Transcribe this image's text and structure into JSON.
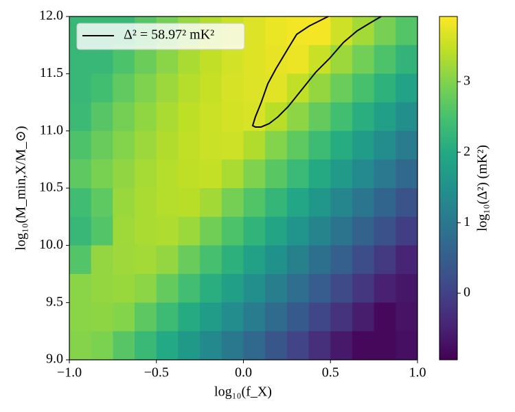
{
  "chart_data": {
    "type": "heatmap",
    "xlabel": "log₁₀(f_X)",
    "ylabel": "log₁₀(M_min,X/M_⊙)",
    "colorbar_label": "log₁₀(Δ²) (mK²)",
    "colormap": "viridis",
    "x": [
      -0.9375,
      -0.8125,
      -0.6875,
      -0.5625,
      -0.4375,
      -0.3125,
      -0.1875,
      -0.0625,
      0.0625,
      0.1875,
      0.3125,
      0.4375,
      0.5625,
      0.6875,
      0.8125,
      0.9375
    ],
    "y": [
      11.875,
      11.625,
      11.375,
      11.125,
      10.875,
      10.625,
      10.375,
      10.125,
      9.875,
      9.625,
      9.375,
      9.125
    ],
    "z": [
      [
        2.3,
        2.3,
        2.3,
        2.63,
        2.91,
        3.16,
        3.37,
        3.54,
        3.68,
        3.78,
        3.84,
        3.86,
        3.57,
        3.25,
        2.92,
        2.6
      ],
      [
        2.3,
        2.3,
        2.54,
        2.82,
        3.07,
        3.29,
        3.46,
        3.6,
        3.7,
        3.76,
        3.79,
        3.52,
        3.2,
        2.87,
        2.55,
        2.22
      ],
      [
        2.3,
        2.44,
        2.73,
        2.98,
        3.2,
        3.37,
        3.51,
        3.62,
        3.68,
        3.71,
        3.46,
        3.14,
        2.81,
        2.49,
        2.16,
        1.84
      ],
      [
        2.35,
        2.64,
        2.9,
        3.11,
        3.29,
        3.44,
        3.54,
        3.61,
        3.64,
        3.41,
        3.09,
        2.76,
        2.44,
        2.11,
        1.79,
        1.46
      ],
      [
        2.55,
        2.8,
        3.02,
        3.2,
        3.35,
        3.46,
        3.53,
        3.56,
        3.35,
        3.02,
        2.7,
        2.37,
        2.05,
        1.72,
        1.4,
        1.07
      ],
      [
        2.72,
        2.94,
        3.12,
        3.27,
        3.38,
        3.45,
        3.49,
        3.3,
        2.98,
        2.65,
        2.33,
        2.0,
        1.68,
        1.35,
        1.03,
        0.7
      ],
      [
        2.4,
        2.7,
        3.18,
        3.3,
        3.37,
        3.41,
        3.24,
        2.91,
        2.59,
        2.26,
        1.94,
        1.61,
        1.29,
        0.96,
        0.64,
        0.31
      ],
      [
        2.3,
        2.6,
        3.22,
        3.3,
        3.33,
        3.19,
        2.86,
        2.54,
        2.21,
        1.89,
        1.56,
        1.24,
        0.91,
        0.59,
        0.26,
        -0.06
      ],
      [
        2.6,
        3.13,
        3.21,
        3.25,
        3.13,
        2.8,
        2.48,
        2.15,
        1.83,
        1.5,
        1.18,
        0.85,
        0.53,
        0.2,
        -0.12,
        -0.45
      ],
      [
        3.06,
        3.14,
        3.18,
        3.08,
        2.75,
        2.43,
        2.1,
        1.78,
        1.45,
        1.13,
        0.8,
        0.48,
        0.15,
        -0.17,
        -0.5,
        -0.65
      ],
      [
        3.06,
        3.1,
        3.02,
        2.69,
        2.37,
        2.04,
        1.72,
        1.39,
        1.07,
        0.74,
        0.42,
        0.09,
        -0.23,
        -0.56,
        -0.85,
        -0.7
      ],
      [
        3.03,
        2.96,
        2.64,
        2.31,
        1.99,
        1.66,
        1.34,
        1.01,
        0.69,
        0.36,
        0.04,
        -0.29,
        -0.61,
        -0.85,
        -0.85,
        -0.75
      ]
    ],
    "contour": {
      "name": "Δ² = 58.97² mK²",
      "color": "#000000",
      "x": [
        0.487,
        0.377,
        0.306,
        0.258,
        0.187,
        0.14,
        0.101,
        0.069,
        0.053,
        0.069,
        0.101,
        0.148,
        0.199,
        0.258,
        0.337,
        0.416,
        0.495,
        0.574,
        0.653,
        0.724,
        0.791
      ],
      "y": [
        12.0,
        11.916,
        11.844,
        11.724,
        11.544,
        11.412,
        11.244,
        11.124,
        11.046,
        11.034,
        11.034,
        11.064,
        11.124,
        11.214,
        11.364,
        11.514,
        11.634,
        11.772,
        11.874,
        11.94,
        12.0
      ]
    },
    "xlim": [
      -1.0,
      1.0
    ],
    "ylim": [
      9.0,
      12.0
    ],
    "xticks": [
      {
        "value": -1.0,
        "label": "−1.0"
      },
      {
        "value": -0.5,
        "label": "−0.5"
      },
      {
        "value": 0.0,
        "label": "0.0"
      },
      {
        "value": 0.5,
        "label": "0.5"
      },
      {
        "value": 1.0,
        "label": "1.0"
      }
    ],
    "yticks": [
      {
        "value": 9.0,
        "label": "9.0"
      },
      {
        "value": 9.5,
        "label": "9.5"
      },
      {
        "value": 10.0,
        "label": "10.0"
      },
      {
        "value": 10.5,
        "label": "10.5"
      },
      {
        "value": 11.0,
        "label": "11.0"
      },
      {
        "value": 11.5,
        "label": "11.5"
      },
      {
        "value": 12.0,
        "label": "12.0"
      }
    ],
    "clim": [
      -0.944,
      3.925
    ],
    "cticks": [
      0,
      1,
      2,
      3
    ],
    "legend": "upper left"
  }
}
